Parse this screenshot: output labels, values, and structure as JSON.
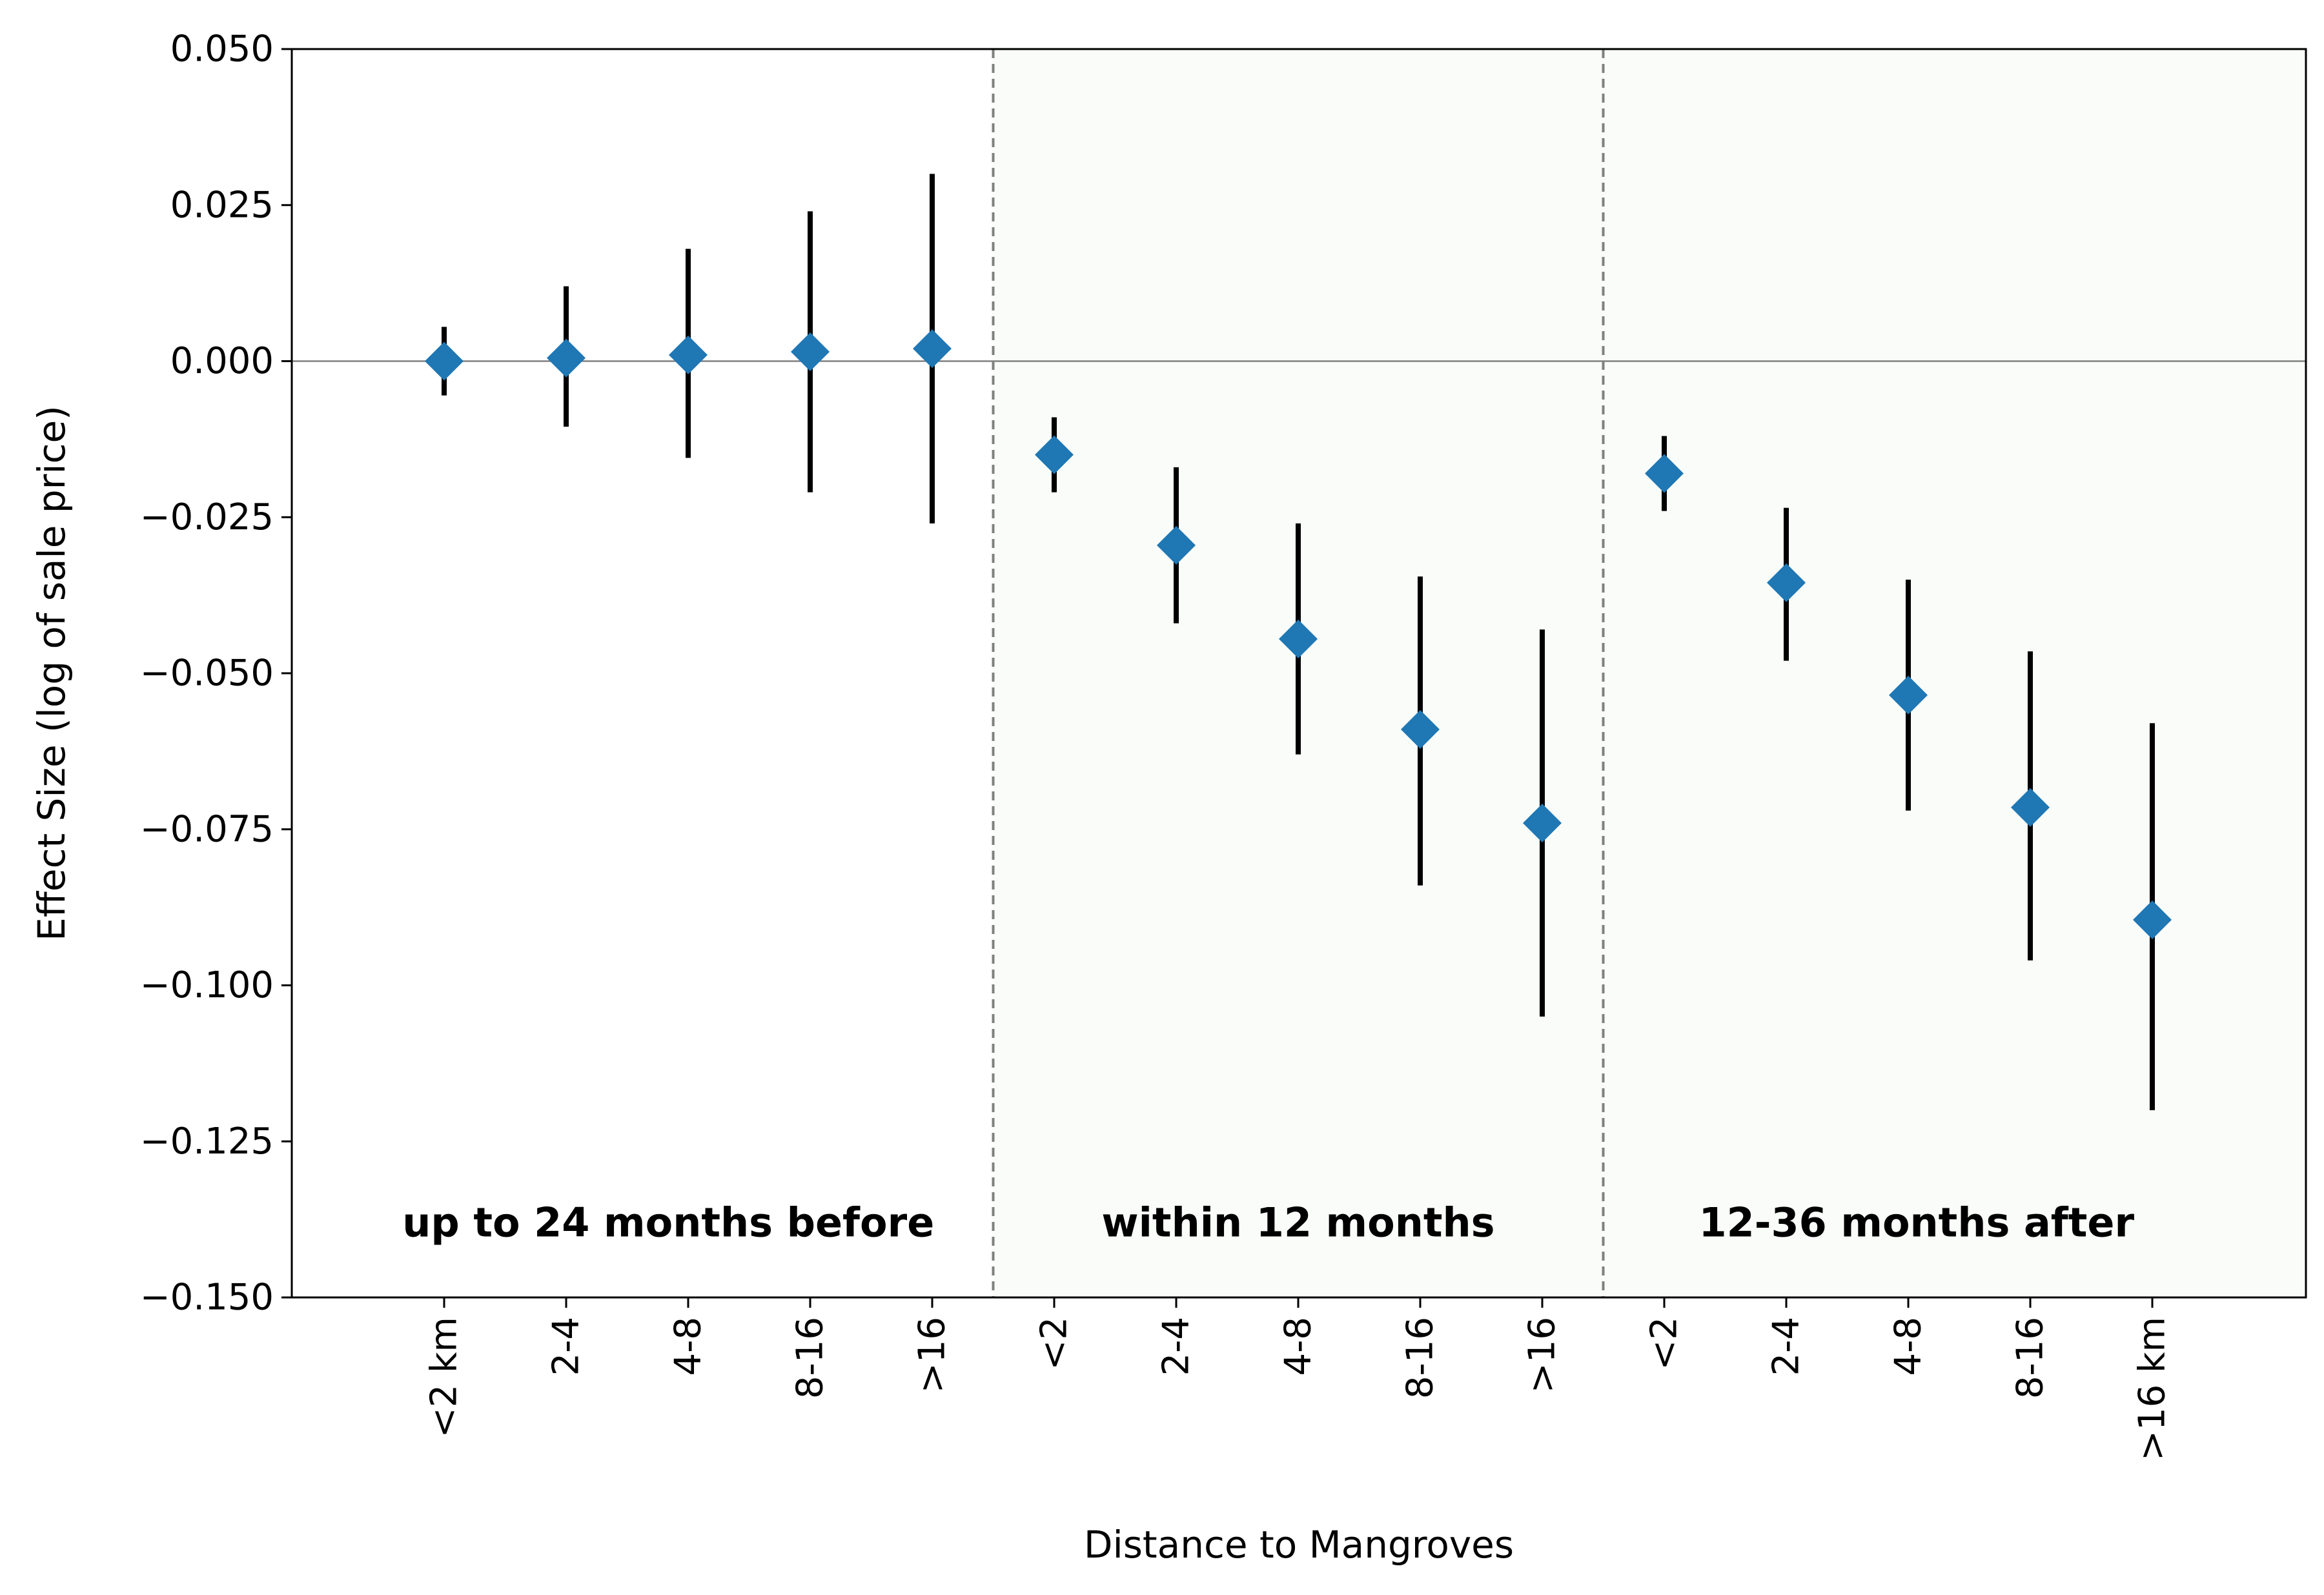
{
  "chart_data": {
    "type": "scatter",
    "xlabel": "Distance to Mangroves",
    "ylabel": "Effect Size (log of sale price)",
    "ylim": [
      -0.15,
      0.05
    ],
    "yticks": [
      "0.050",
      "0.025",
      "0.000",
      "−0.025",
      "−0.050",
      "−0.075",
      "−0.100",
      "−0.125",
      "−0.150"
    ],
    "ytick_values": [
      0.05,
      0.025,
      0.0,
      -0.025,
      -0.05,
      -0.075,
      -0.1,
      -0.125,
      -0.15
    ],
    "categories": [
      "<2 km",
      "2-4",
      "4-8",
      "8-16",
      ">16",
      "<2",
      "2-4",
      "4-8",
      "8-16",
      ">16",
      "<2",
      "2-4",
      "4-8",
      "8-16",
      ">16 km"
    ],
    "periods": [
      {
        "label": "up to 24 months before",
        "points": [
          0,
          4
        ]
      },
      {
        "label": "within 12 months",
        "points": [
          5,
          9
        ]
      },
      {
        "label": "12-36 months after",
        "points": [
          10,
          14
        ]
      }
    ],
    "estimates": [
      0.0,
      0.0005,
      0.001,
      0.0015,
      0.002,
      -0.015,
      -0.0295,
      -0.0445,
      -0.059,
      -0.074,
      -0.018,
      -0.0355,
      -0.0535,
      -0.0715,
      -0.0895
    ],
    "ci_low": [
      -0.0055,
      -0.0105,
      -0.0155,
      -0.021,
      -0.026,
      -0.021,
      -0.042,
      -0.063,
      -0.084,
      -0.105,
      -0.024,
      -0.048,
      -0.072,
      -0.096,
      -0.12
    ],
    "ci_high": [
      0.0055,
      0.012,
      0.018,
      0.024,
      0.03,
      -0.009,
      -0.017,
      -0.026,
      -0.0345,
      -0.043,
      -0.012,
      -0.0235,
      -0.035,
      -0.0465,
      -0.058
    ],
    "reference_line": 0.0,
    "marker": "diamond",
    "colors": {
      "marker": "#1f77b4",
      "errorbar": "#000000",
      "zero_line": "#808080",
      "divider": "#808080",
      "shade": "#f2f8f2"
    },
    "grid": false,
    "legend": "none"
  }
}
